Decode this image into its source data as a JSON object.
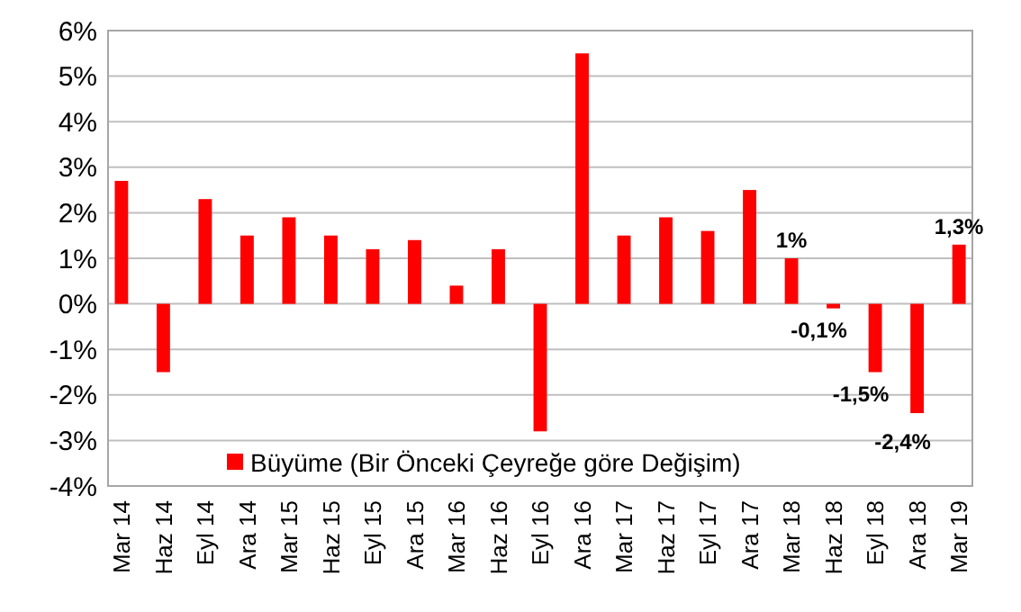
{
  "chart_data": {
    "type": "bar",
    "categories": [
      "Mar 14",
      "Haz 14",
      "Eyl 14",
      "Ara 14",
      "Mar 15",
      "Haz 15",
      "Eyl 15",
      "Ara 15",
      "Mar 16",
      "Haz 16",
      "Eyl 16",
      "Ara 16",
      "Mar 17",
      "Haz 17",
      "Eyl 17",
      "Ara 17",
      "Mar 18",
      "Haz 18",
      "Eyl 18",
      "Ara 18",
      "Mar 19"
    ],
    "series": [
      {
        "name": "Büyüme (Bir Önceki Çeyreğe göre Değişim)",
        "color": "#ff0000",
        "values": [
          2.7,
          -1.5,
          2.3,
          1.5,
          1.9,
          1.5,
          1.2,
          1.4,
          0.4,
          1.2,
          -2.8,
          5.5,
          1.5,
          1.9,
          1.6,
          2.5,
          1.0,
          -0.1,
          -1.5,
          -2.4,
          1.3
        ],
        "value_labels": [
          null,
          null,
          null,
          null,
          null,
          null,
          null,
          null,
          null,
          null,
          null,
          null,
          null,
          null,
          null,
          null,
          "1%",
          "-0,1%",
          "-1,5%",
          "-2,4%",
          "1,3%"
        ]
      }
    ],
    "ylim": [
      -4,
      6
    ],
    "yticks": [
      {
        "value": -4,
        "label": "-4%"
      },
      {
        "value": -3,
        "label": "-3%"
      },
      {
        "value": -2,
        "label": "-2%"
      },
      {
        "value": -1,
        "label": "-1%"
      },
      {
        "value": 0,
        "label": "0%"
      },
      {
        "value": 1,
        "label": "1%"
      },
      {
        "value": 2,
        "label": "2%"
      },
      {
        "value": 3,
        "label": "3%"
      },
      {
        "value": 4,
        "label": "4%"
      },
      {
        "value": 5,
        "label": "5%"
      },
      {
        "value": 6,
        "label": "6%"
      }
    ],
    "grid": "y",
    "legend": "bottom left"
  }
}
